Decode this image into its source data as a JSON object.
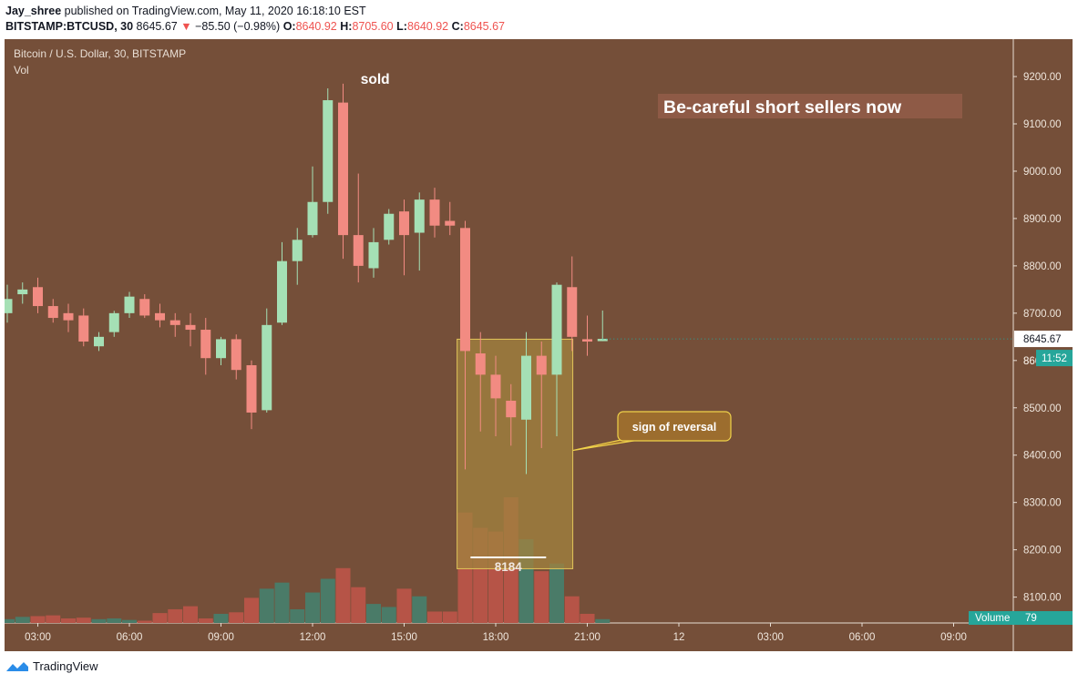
{
  "header": {
    "author": "Jay_shree",
    "published_text": "published on TradingView.com, May 11, 2020 16:18:10 EST",
    "symbol": "BITSTAMP:BTCUSD, 30",
    "last": "8645.67",
    "change": "−85.50 (−0.98%)",
    "o_label": "O:",
    "o": "8640.92",
    "h_label": "H:",
    "h": "8705.60",
    "l_label": "L:",
    "l": "8640.92",
    "c_label": "C:",
    "c": "8645.67"
  },
  "legend": {
    "title": "Bitcoin / U.S. Dollar, 30, BITSTAMP",
    "sub": "Vol"
  },
  "footer": {
    "brand": "TradingView"
  },
  "colors": {
    "background": "#754f39",
    "up": "#a5e0b5",
    "down": "#f28b82",
    "vol_up": "#4a7b68",
    "vol_down": "#b65447",
    "highlight": "#a0813f",
    "callout": "#9c6d2e",
    "callout_border": "#f0d24a",
    "price_badge": "#26a69a"
  },
  "chart_data": {
    "type": "candlestick",
    "ylim": [
      8080,
      9270
    ],
    "y_ticks": [
      8100,
      8200,
      8300,
      8400,
      8500,
      8600,
      8700,
      8800,
      8900,
      9000,
      9100,
      9200
    ],
    "y_tick_labels": [
      "8100.00",
      "8200.00",
      "8300.00",
      "8400.00",
      "8500.00",
      "8600.00",
      "8700.00",
      "8800.00",
      "8900.00",
      "9000.00",
      "9100.00",
      "9200.00"
    ],
    "x_ticks": [
      {
        "i": 2,
        "label": "03:00"
      },
      {
        "i": 8,
        "label": "06:00"
      },
      {
        "i": 14,
        "label": "09:00"
      },
      {
        "i": 20,
        "label": "12:00"
      },
      {
        "i": 26,
        "label": "15:00"
      },
      {
        "i": 32,
        "label": "18:00"
      },
      {
        "i": 38,
        "label": "21:00"
      },
      {
        "i": 44,
        "label": "12"
      },
      {
        "i": 50,
        "label": "03:00"
      },
      {
        "i": 56,
        "label": "06:00"
      },
      {
        "i": 62,
        "label": "09:00"
      }
    ],
    "candles": [
      {
        "o": 8700,
        "h": 8760,
        "l": 8680,
        "c": 8730
      },
      {
        "o": 8740,
        "h": 8765,
        "l": 8720,
        "c": 8750
      },
      {
        "o": 8755,
        "h": 8775,
        "l": 8700,
        "c": 8715
      },
      {
        "o": 8715,
        "h": 8730,
        "l": 8680,
        "c": 8690
      },
      {
        "o": 8700,
        "h": 8720,
        "l": 8660,
        "c": 8685
      },
      {
        "o": 8695,
        "h": 8710,
        "l": 8630,
        "c": 8640
      },
      {
        "o": 8630,
        "h": 8660,
        "l": 8620,
        "c": 8650
      },
      {
        "o": 8660,
        "h": 8705,
        "l": 8650,
        "c": 8700
      },
      {
        "o": 8700,
        "h": 8745,
        "l": 8690,
        "c": 8735
      },
      {
        "o": 8730,
        "h": 8740,
        "l": 8690,
        "c": 8695
      },
      {
        "o": 8700,
        "h": 8720,
        "l": 8670,
        "c": 8685
      },
      {
        "o": 8685,
        "h": 8700,
        "l": 8650,
        "c": 8675
      },
      {
        "o": 8675,
        "h": 8700,
        "l": 8630,
        "c": 8665
      },
      {
        "o": 8665,
        "h": 8690,
        "l": 8570,
        "c": 8605
      },
      {
        "o": 8605,
        "h": 8650,
        "l": 8590,
        "c": 8645
      },
      {
        "o": 8645,
        "h": 8655,
        "l": 8560,
        "c": 8580
      },
      {
        "o": 8590,
        "h": 8600,
        "l": 8455,
        "c": 8490
      },
      {
        "o": 8495,
        "h": 8710,
        "l": 8490,
        "c": 8675
      },
      {
        "o": 8680,
        "h": 8850,
        "l": 8675,
        "c": 8810
      },
      {
        "o": 8810,
        "h": 8880,
        "l": 8760,
        "c": 8855
      },
      {
        "o": 8865,
        "h": 9010,
        "l": 8860,
        "c": 8935
      },
      {
        "o": 8935,
        "h": 9175,
        "l": 8910,
        "c": 9150
      },
      {
        "o": 9145,
        "h": 9185,
        "l": 8815,
        "c": 8865
      },
      {
        "o": 8865,
        "h": 8995,
        "l": 8765,
        "c": 8800
      },
      {
        "o": 8795,
        "h": 8880,
        "l": 8775,
        "c": 8850
      },
      {
        "o": 8855,
        "h": 8920,
        "l": 8845,
        "c": 8910
      },
      {
        "o": 8915,
        "h": 8940,
        "l": 8780,
        "c": 8865
      },
      {
        "o": 8870,
        "h": 8955,
        "l": 8790,
        "c": 8940
      },
      {
        "o": 8940,
        "h": 8965,
        "l": 8860,
        "c": 8885
      },
      {
        "o": 8895,
        "h": 8935,
        "l": 8865,
        "c": 8885
      },
      {
        "o": 8880,
        "h": 8895,
        "l": 8370,
        "c": 8620
      },
      {
        "o": 8615,
        "h": 8660,
        "l": 8450,
        "c": 8570
      },
      {
        "o": 8570,
        "h": 8610,
        "l": 8440,
        "c": 8520
      },
      {
        "o": 8515,
        "h": 8550,
        "l": 8420,
        "c": 8480
      },
      {
        "o": 8475,
        "h": 8660,
        "l": 8360,
        "c": 8610
      },
      {
        "o": 8610,
        "h": 8640,
        "l": 8415,
        "c": 8570
      },
      {
        "o": 8570,
        "h": 8765,
        "l": 8440,
        "c": 8760
      },
      {
        "o": 8755,
        "h": 8820,
        "l": 8620,
        "c": 8650
      },
      {
        "o": 8645,
        "h": 8695,
        "l": 8610,
        "c": 8640
      },
      {
        "o": 8640.92,
        "h": 8705.6,
        "l": 8640.92,
        "c": 8645.67
      }
    ],
    "volumes": [
      5,
      8,
      9,
      10,
      6,
      7,
      5,
      6,
      4,
      3,
      13,
      18,
      22,
      6,
      12,
      14,
      33,
      45,
      53,
      18,
      40,
      58,
      72,
      47,
      25,
      21,
      45,
      35,
      15,
      15,
      145,
      125,
      120,
      165,
      110,
      68,
      78,
      35,
      12,
      5
    ],
    "annotations": {
      "sold": "sold",
      "banner": "Be-careful short sellers now",
      "callout": "sign of reversal",
      "box_low_label": "8184"
    },
    "price_badge": "8645.67",
    "countdown_badge": "11:52",
    "countdown_partial": "86",
    "volume_badge_label": "Volume",
    "volume_badge_value": "79"
  }
}
